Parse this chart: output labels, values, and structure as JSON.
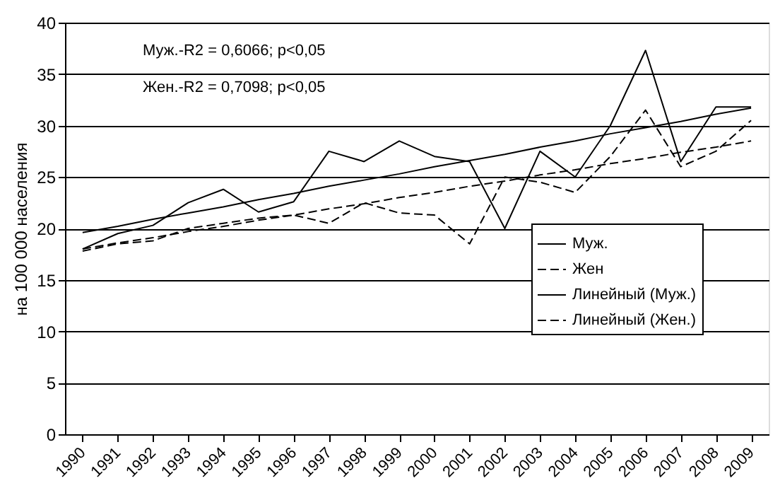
{
  "chart_data": {
    "type": "line",
    "ylabel": "на 100 000 населения",
    "categories": [
      "1990",
      "1991",
      "1992",
      "1993",
      "1994",
      "1995",
      "1996",
      "1997",
      "1998",
      "1999",
      "2000",
      "2001",
      "2002",
      "2003",
      "2004",
      "2005",
      "2006",
      "2007",
      "2008",
      "2009"
    ],
    "series": [
      {
        "name": "Муж.",
        "color": "#000000",
        "line_style": "solid",
        "values": [
          18,
          19.5,
          20.3,
          22.5,
          23.8,
          21.6,
          22.6,
          27.5,
          26.5,
          28.5,
          27,
          26.5,
          20,
          27.5,
          25,
          30,
          37.3,
          26.5,
          31.8,
          31.8
        ]
      },
      {
        "name": "Жен",
        "color": "#000000",
        "line_style": "dashed",
        "values": [
          17.8,
          18.5,
          18.8,
          20,
          20.5,
          21,
          21.3,
          20.5,
          22.5,
          21.5,
          21.3,
          18.5,
          25,
          24.5,
          23.5,
          27,
          31.5,
          26,
          27.5,
          30.5
        ]
      },
      {
        "name": "Линейный (Муж.)",
        "color": "#000000",
        "line_style": "solid",
        "values": [
          19.6,
          20.2,
          20.9,
          21.5,
          22.1,
          22.8,
          23.4,
          24.1,
          24.7,
          25.3,
          26.0,
          26.6,
          27.2,
          27.9,
          28.5,
          29.2,
          29.8,
          30.4,
          31.1,
          31.7
        ]
      },
      {
        "name": "Линейный (Жен.)",
        "color": "#000000",
        "line_style": "dashed",
        "values": [
          18.0,
          18.6,
          19.1,
          19.7,
          20.2,
          20.8,
          21.3,
          21.9,
          22.4,
          23.0,
          23.5,
          24.1,
          24.6,
          25.2,
          25.7,
          26.3,
          26.8,
          27.4,
          27.9,
          28.5
        ]
      }
    ],
    "ylim": [
      0,
      40
    ],
    "yticks": [
      0,
      5,
      10,
      15,
      20,
      25,
      30,
      35,
      40
    ],
    "grid": "y",
    "legend": "right",
    "marker": "none",
    "annotations": [
      "Муж.-R2 = 0,6066; p<0,05",
      "Жен.-R2 = 0,7098; p<0,05"
    ]
  }
}
